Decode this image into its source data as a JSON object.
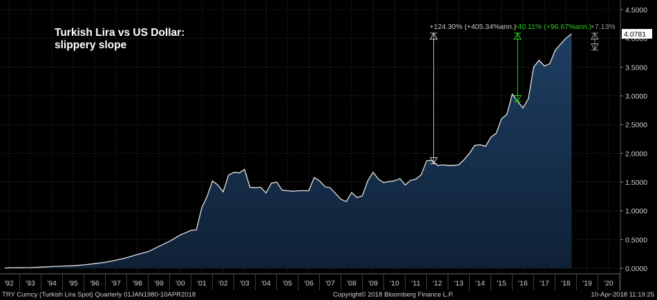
{
  "chart_data": {
    "type": "area",
    "title": "Turkish Lira vs US Dollar:",
    "subtitle": "slippery slope",
    "ylim": [
      0,
      4.5
    ],
    "y_ticks": [
      "0.0000",
      "0.5000",
      "1.0000",
      "1.5000",
      "2.0000",
      "2.5000",
      "3.0000",
      "3.5000",
      "4.0000",
      "4.5000"
    ],
    "x_ticks": [
      "'92",
      "'93",
      "'94",
      "'95",
      "'96",
      "'97",
      "'98",
      "'99",
      "'00",
      "'01",
      "'02",
      "'03",
      "'04",
      "'05",
      "'06",
      "'07",
      "'08",
      "'09",
      "'10",
      "'11",
      "'12",
      "'13",
      "'14",
      "'15",
      "'16",
      "'17",
      "'18",
      "'19",
      "'20"
    ],
    "grid": true,
    "last_value_label": "4.0781",
    "series": [
      {
        "x": [
          1991.8,
          1992.0,
          1992.5,
          1993.0,
          1993.5,
          1994.0,
          1994.5,
          1995.0,
          1995.5,
          1996.0,
          1996.5,
          1997.0,
          1997.5,
          1998.0,
          1998.5,
          1999.0,
          1999.5,
          2000.0,
          2000.25,
          2000.5,
          2000.75,
          2001.0,
          2001.25,
          2001.5,
          2001.75,
          2002.0,
          2002.25,
          2002.5,
          2002.75,
          2003.0,
          2003.25,
          2003.5,
          2003.75,
          2004.0,
          2004.25,
          2004.5,
          2004.75,
          2005.0,
          2005.25,
          2005.5,
          2005.75,
          2006.0,
          2006.25,
          2006.5,
          2006.75,
          2007.0,
          2007.25,
          2007.5,
          2007.75,
          2008.0,
          2008.25,
          2008.5,
          2008.75,
          2009.0,
          2009.25,
          2009.5,
          2009.75,
          2010.0,
          2010.25,
          2010.5,
          2010.75,
          2011.0,
          2011.25,
          2011.5,
          2011.75,
          2012.0,
          2012.25,
          2012.5,
          2012.75,
          2013.0,
          2013.25,
          2013.5,
          2013.75,
          2014.0,
          2014.25,
          2014.5,
          2014.75,
          2015.0,
          2015.25,
          2015.5,
          2015.75,
          2016.0,
          2016.25,
          2016.5,
          2016.75,
          2017.0,
          2017.25,
          2017.5,
          2017.75,
          2018.0,
          2018.27
        ],
        "values": [
          0.005,
          0.007,
          0.01,
          0.012,
          0.02,
          0.03,
          0.037,
          0.045,
          0.06,
          0.08,
          0.105,
          0.14,
          0.185,
          0.24,
          0.29,
          0.38,
          0.47,
          0.58,
          0.62,
          0.66,
          0.67,
          1.05,
          1.25,
          1.52,
          1.45,
          1.33,
          1.62,
          1.67,
          1.66,
          1.72,
          1.41,
          1.4,
          1.41,
          1.31,
          1.48,
          1.5,
          1.36,
          1.35,
          1.34,
          1.35,
          1.35,
          1.35,
          1.58,
          1.52,
          1.42,
          1.4,
          1.3,
          1.2,
          1.16,
          1.32,
          1.23,
          1.26,
          1.52,
          1.67,
          1.55,
          1.49,
          1.51,
          1.52,
          1.56,
          1.45,
          1.53,
          1.55,
          1.63,
          1.87,
          1.88,
          1.79,
          1.8,
          1.79,
          1.79,
          1.8,
          1.89,
          2.0,
          2.14,
          2.15,
          2.12,
          2.28,
          2.35,
          2.6,
          2.68,
          3.03,
          2.9,
          2.79,
          2.95,
          3.5,
          3.62,
          3.52,
          3.56,
          3.79,
          3.9,
          4.0,
          4.08
        ]
      }
    ],
    "annotations": [
      {
        "text": "+124.30% (+405.34%ann.)",
        "from": [
          2011.83,
          1.83
        ],
        "to": [
          2011.83,
          4.08
        ],
        "color": "#c8c8c8"
      },
      {
        "text": "+40.11% (+96.67%ann.)",
        "from": [
          2015.75,
          2.91
        ],
        "to": [
          2015.75,
          4.08
        ],
        "color": "#29d11d"
      },
      {
        "text": "+7.13%",
        "from": [
          2019.35,
          3.81
        ],
        "to": [
          2019.35,
          4.08
        ],
        "color": "#9a9a9a"
      }
    ]
  },
  "footer": {
    "ticker": "TRY Curncy (Turkish Lira Spot)  Quarterly 01JAN1980-10APR2018",
    "copyright": "Copyright© 2018 Bloomberg Finance L.P.",
    "timestamp": "10-Apr-2018 11:19:25"
  },
  "colors": {
    "background": "#000000",
    "area_top": "#1f3f63",
    "area_bottom": "#0f2136",
    "line": "#e6e6e6",
    "grid": "#3a3a3a",
    "last_value_box": "#ffffff",
    "accent_green": "#29d11d"
  }
}
